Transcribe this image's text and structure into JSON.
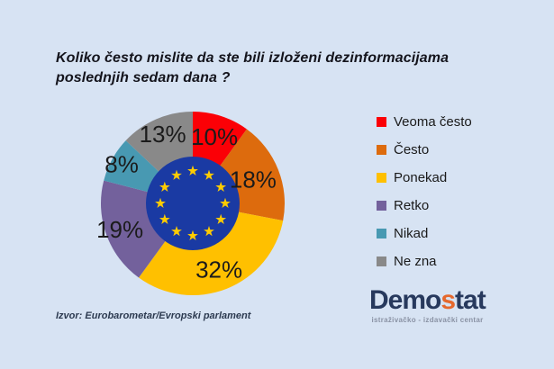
{
  "page": {
    "background": "#D7E3F3"
  },
  "title": {
    "line1": "Koliko često mislite da ste bili izloženi dezinformacijama",
    "line2": "poslednjih sedam dana ?",
    "color": "#14141C"
  },
  "chart_data": {
    "type": "pie",
    "donut": true,
    "title": "Koliko često mislite da ste bili izloženi dezinformacijama poslednjih sedam dana ?",
    "categories": [
      "Veoma često",
      "Često",
      "Ponekad",
      "Retko",
      "Nikad",
      "Ne zna"
    ],
    "values": [
      10,
      18,
      32,
      19,
      8,
      13
    ],
    "data_labels": [
      "10%",
      "18%",
      "32%",
      "19%",
      "8%",
      "13%"
    ],
    "colors": [
      "#FB0006",
      "#DD6B0D",
      "#FFC000",
      "#73619C",
      "#4899B2",
      "#898989"
    ],
    "start_angle_deg": 0,
    "direction": "clockwise",
    "legend_position": "right",
    "label_color": "#1B1B1B",
    "center_decoration": {
      "type": "eu-flag",
      "circle_color": "#1A3AA3",
      "star_color": "#FFCC00",
      "star_count": 12
    }
  },
  "legend": {
    "text_color": "#1A1A1A"
  },
  "source": {
    "text": "Izvor: Eurobarometar/Evropski parlament",
    "color": "#2C3A50"
  },
  "logo": {
    "part1": "Demo",
    "accent": "s",
    "part2": "tat",
    "subtitle": "istraživačko - izdavački centar",
    "navy": "#27395D",
    "accent_color": "#E5682D",
    "subtitle_color": "#8A92A4"
  }
}
